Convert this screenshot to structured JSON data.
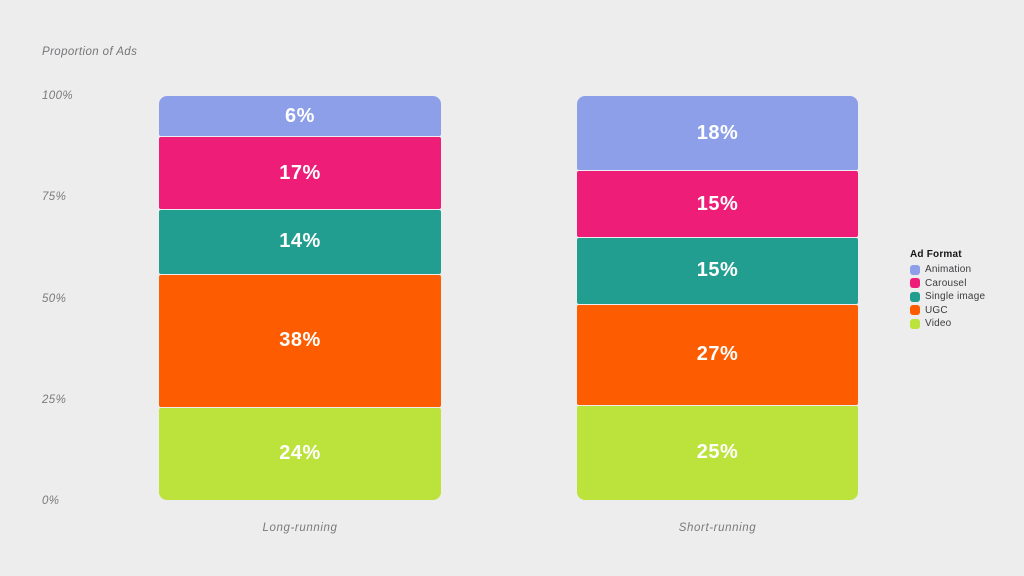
{
  "chart_data": {
    "type": "bar",
    "variant": "stacked-percentage",
    "ylabel": "Proportion of Ads",
    "xlabel": "",
    "title": "",
    "categories": [
      "Long-running",
      "Short-running"
    ],
    "series": [
      {
        "name": "Animation",
        "color": "#8c9fe8",
        "values": [
          6,
          18
        ],
        "labels": [
          "6%",
          "18%"
        ]
      },
      {
        "name": "Carousel",
        "color": "#ee1e78",
        "values": [
          17,
          15
        ],
        "labels": [
          "17%",
          "15%"
        ]
      },
      {
        "name": "Single image",
        "color": "#219e90",
        "values": [
          14,
          15
        ],
        "labels": [
          "14%",
          "15%"
        ]
      },
      {
        "name": "UGC",
        "color": "#fd5c01",
        "values": [
          38,
          27
        ],
        "labels": [
          "38%",
          "27%"
        ]
      },
      {
        "name": "Video",
        "color": "#bce23c",
        "values": [
          24,
          25
        ],
        "labels": [
          "24%",
          "25%"
        ]
      }
    ],
    "y_ticks": [
      "100%",
      "75%",
      "50%",
      "25%",
      "0%"
    ],
    "ylim": [
      0,
      100
    ],
    "grid": false,
    "legend_title": "Ad Format",
    "legend_position": "right",
    "background_color": "#ededee"
  }
}
